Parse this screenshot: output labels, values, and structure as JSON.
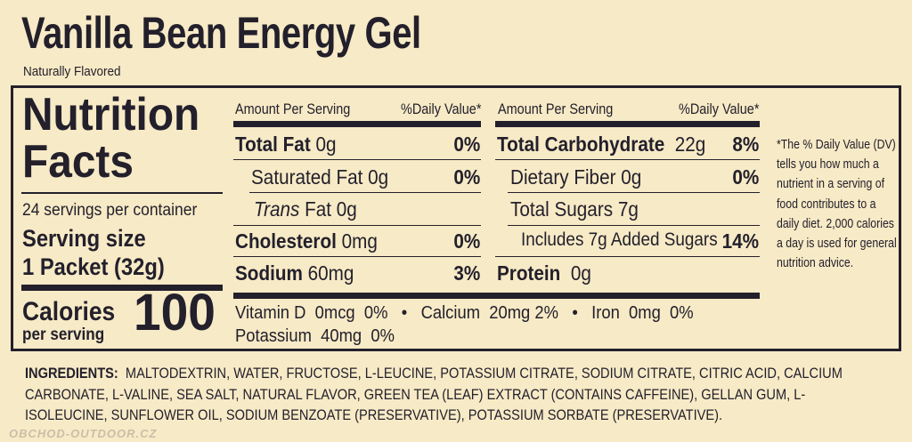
{
  "product": {
    "title": "Vanilla Bean Energy Gel",
    "subtitle": "Naturally Flavored"
  },
  "label": {
    "heading_line1": "Nutrition",
    "heading_line2": "Facts",
    "servings_per_container": "24 servings per container",
    "serving_size_label": "Serving size",
    "serving_size_value": "1 Packet (32g)",
    "calories_label": "Calories",
    "calories_sub": "per serving",
    "calories_value": "100"
  },
  "left_table": {
    "header_left": "Amount Per Serving",
    "header_right": "%Daily Value*",
    "rows": [
      {
        "name": "Total Fat",
        "amount": "0g",
        "dv": "0%"
      },
      {
        "name": "Saturated Fat",
        "amount": "0g",
        "dv": "0%"
      },
      {
        "name": "Trans",
        "name_rest": "Fat",
        "amount": "0g",
        "dv": ""
      },
      {
        "name": "Cholesterol",
        "amount": "0mg",
        "dv": "0%"
      },
      {
        "name": "Sodium",
        "amount": "60mg",
        "dv": "3%"
      }
    ]
  },
  "right_table": {
    "header_left": "Amount Per Serving",
    "header_right": "%Daily Value*",
    "rows": [
      {
        "name": "Total Carbohydrate",
        "amount": "22g",
        "dv": "8%"
      },
      {
        "name": "Dietary Fiber",
        "amount": "0g",
        "dv": "0%"
      },
      {
        "name": "Total Sugars",
        "amount": "7g",
        "dv": ""
      },
      {
        "name": "Includes 7g Added Sugars",
        "amount": "",
        "dv": "14%"
      },
      {
        "name": "Protein",
        "amount": "0g",
        "dv": ""
      }
    ]
  },
  "vitamins": {
    "line1": "Vitamin D  0mcg  0%   •   Calcium  20mg 2%   •   Iron  0mg  0%",
    "line2": "Potassium  40mg  0%"
  },
  "dv_note": "*The % Daily Value (DV) tells you how much a nutrient in a serving of food contributes to a daily diet. 2,000 calories a day is used for general nutrition advice.",
  "ingredients": {
    "label": "INGREDIENTS:",
    "text": "MALTODEXTRIN, WATER, FRUCTOSE, L-LEUCINE, POTASSIUM CITRATE, SODIUM CITRATE, CITRIC ACID, CALCIUM CARBONATE, L-VALINE, SEA SALT, NATURAL FLAVOR, GREEN TEA (LEAF) EXTRACT (CONTAINS CAFFEINE), GELLAN GUM, L-ISOLEUCINE, SUNFLOWER OIL, SODIUM BENZOATE (PRESERVATIVE), POTASSIUM SORBATE (PRESERVATIVE)."
  },
  "watermark": "OBCHOD-OUTDOOR.CZ",
  "colors": {
    "background": "#f7eac6",
    "ink": "#23202c"
  }
}
